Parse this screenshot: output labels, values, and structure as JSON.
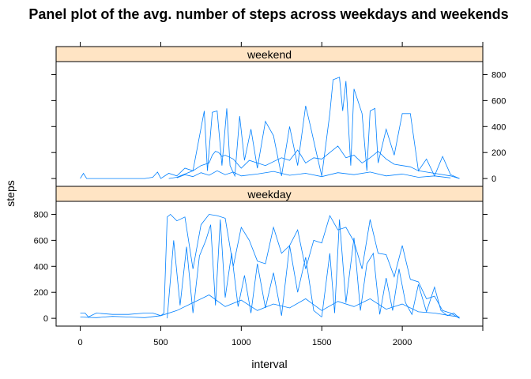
{
  "chart_data": {
    "type": "line",
    "title": "Panel plot of the avg. number of steps across weekdays and weekends",
    "xlabel": "interval",
    "ylabel": "steps",
    "xlim": [
      -150,
      2500
    ],
    "ylim": [
      -60,
      900
    ],
    "x_ticks": [
      0,
      500,
      1000,
      1500,
      2000
    ],
    "y_ticks": [
      0,
      200,
      400,
      600,
      800
    ],
    "line_color": "#0080ff",
    "strip_color": "#ffe4c4",
    "panels": [
      {
        "name": "weekend",
        "series": [
          {
            "x": [
              0,
              20,
              40,
              100,
              150,
              300,
              400,
              450,
              480,
              500,
              550,
              600,
              650,
              700,
              750,
              800,
              820,
              840,
              860,
              880,
              900,
              950,
              1000,
              1050,
              1100,
              1150,
              1200,
              1250,
              1300,
              1350,
              1400,
              1450,
              1500,
              1550,
              1600,
              1650,
              1700,
              1750,
              1800,
              1850,
              1900,
              1950,
              2000,
              2050,
              2100,
              2200,
              2300,
              2355
            ],
            "y": [
              0,
              40,
              0,
              0,
              0,
              0,
              0,
              10,
              50,
              0,
              40,
              20,
              80,
              60,
              100,
              120,
              180,
              210,
              200,
              170,
              180,
              150,
              80,
              140,
              120,
              100,
              130,
              160,
              140,
              220,
              120,
              160,
              150,
              200,
              250,
              160,
              180,
              120,
              160,
              210,
              150,
              110,
              100,
              90,
              60,
              40,
              20,
              0
            ]
          },
          {
            "x": [
              550,
              600,
              700,
              770,
              790,
              820,
              850,
              880,
              910,
              930,
              960,
              990,
              1020,
              1060,
              1100,
              1150,
              1200,
              1250,
              1300,
              1350,
              1400,
              1430,
              1470,
              1500
            ],
            "y": [
              0,
              10,
              60,
              520,
              60,
              510,
              520,
              100,
              540,
              100,
              20,
              480,
              140,
              380,
              80,
              440,
              330,
              20,
              400,
              100,
              560,
              400,
              180,
              20
            ]
          },
          {
            "x": [
              1500,
              1550,
              1570,
              1590,
              1610,
              1630,
              1650,
              1680,
              1700,
              1750,
              1780,
              1800,
              1830,
              1850,
              1900,
              1950,
              2000,
              2050,
              2100,
              2150,
              2200,
              2250,
              2300,
              2355
            ],
            "y": [
              20,
              500,
              760,
              770,
              780,
              520,
              750,
              100,
              690,
              500,
              60,
              520,
              540,
              120,
              380,
              180,
              500,
              500,
              60,
              150,
              20,
              170,
              30,
              0
            ]
          },
          {
            "x": [
              600,
              650,
              700,
              750,
              800,
              850,
              900,
              950,
              1000,
              1100,
              1200,
              1300,
              1400,
              1500,
              1600,
              1700,
              1800,
              1900,
              2000,
              2100,
              2200,
              2300
            ],
            "y": [
              5,
              30,
              15,
              45,
              25,
              60,
              30,
              50,
              20,
              35,
              55,
              25,
              40,
              15,
              45,
              30,
              50,
              20,
              35,
              10,
              20,
              5
            ]
          }
        ]
      },
      {
        "name": "weekday",
        "series": [
          {
            "x": [
              0,
              30,
              50,
              100,
              200,
              300,
              400,
              450,
              500,
              520,
              540,
              560,
              600,
              650,
              700,
              750,
              800,
              850,
              900,
              950,
              1000,
              1050,
              1100,
              1150,
              1200,
              1250,
              1300,
              1350,
              1400,
              1450,
              1500,
              1550,
              1600,
              1650,
              1700,
              1750,
              1800,
              1850,
              1900,
              1950,
              2000,
              2050,
              2100,
              2150,
              2200,
              2250,
              2300,
              2355
            ],
            "y": [
              40,
              40,
              10,
              40,
              30,
              30,
              40,
              40,
              20,
              40,
              780,
              800,
              750,
              780,
              380,
              720,
              800,
              790,
              770,
              400,
              700,
              600,
              440,
              420,
              700,
              500,
              560,
              680,
              380,
              600,
              580,
              790,
              680,
              700,
              590,
              380,
              760,
              500,
              490,
              320,
              560,
              300,
              280,
              150,
              170,
              60,
              40,
              0
            ]
          },
          {
            "x": [
              540,
              580,
              620,
              660,
              700,
              740,
              780,
              810,
              840,
              870,
              900,
              940,
              980,
              1020,
              1060,
              1100,
              1150,
              1200,
              1250,
              1300,
              1350,
              1400,
              1450,
              1500
            ],
            "y": [
              0,
              600,
              100,
              550,
              40,
              480,
              600,
              720,
              100,
              760,
              160,
              500,
              90,
              330,
              40,
              420,
              80,
              350,
              20,
              560,
              200,
              470,
              60,
              10
            ]
          },
          {
            "x": [
              1500,
              1550,
              1580,
              1610,
              1650,
              1700,
              1740,
              1780,
              1820,
              1860,
              1900,
              1940,
              1980,
              2020,
              2060,
              2100,
              2150,
              2200,
              2240,
              2280,
              2320,
              2355
            ],
            "y": [
              10,
              500,
              40,
              760,
              120,
              620,
              60,
              420,
              500,
              30,
              310,
              60,
              380,
              120,
              30,
              260,
              50,
              240,
              60,
              20,
              40,
              0
            ]
          },
          {
            "x": [
              0,
              100,
              200,
              300,
              400,
              500,
              600,
              700,
              800,
              900,
              1000,
              1100,
              1200,
              1300,
              1400,
              1500,
              1600,
              1700,
              1800,
              1900,
              2000,
              2100,
              2200,
              2300,
              2355
            ],
            "y": [
              10,
              5,
              15,
              10,
              5,
              20,
              60,
              120,
              180,
              90,
              140,
              60,
              110,
              80,
              150,
              60,
              130,
              90,
              150,
              70,
              110,
              50,
              40,
              20,
              10
            ]
          }
        ]
      }
    ]
  }
}
